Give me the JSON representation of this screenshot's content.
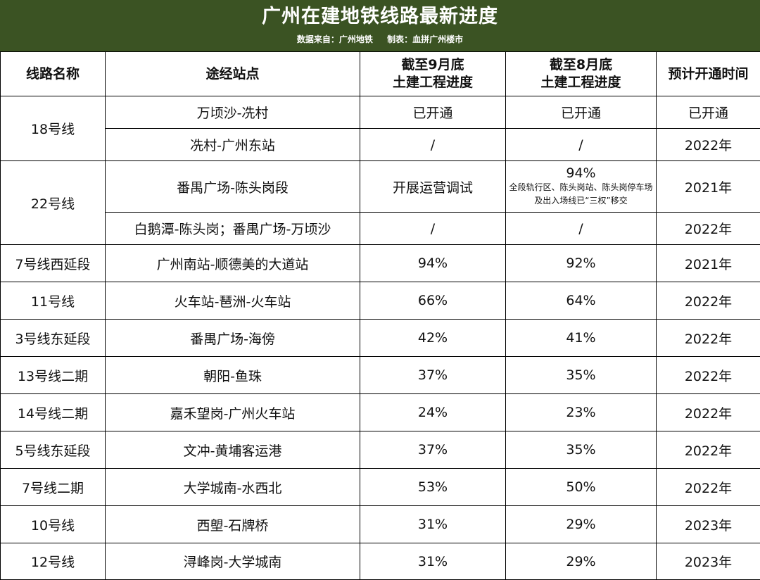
{
  "title": "广州在建地铁线路最新进度",
  "source": "数据来自：广州地铁",
  "maker": "制表：血拼广州楼市",
  "columns": {
    "line": "线路名称",
    "stations": "途经站点",
    "sep_line1": "截至9月底",
    "sep_line2": "土建工程进度",
    "aug_line1": "截至8月底",
    "aug_line2": "土建工程进度",
    "open": "预计开通时间"
  },
  "line18": {
    "name": "18号线",
    "seg1": {
      "stations": "万顷沙-冼村",
      "sep": "已开通",
      "aug": "已开通",
      "open": "已开通"
    },
    "seg2": {
      "stations": "冼村-广州东站",
      "sep": "/",
      "aug": "/",
      "open": "2022年"
    }
  },
  "line22": {
    "name": "22号线",
    "seg1": {
      "stations": "番禺广场-陈头岗段",
      "sep": "开展运营调试",
      "aug": "94%",
      "aug_note": "全段轨行区、陈头岗站、陈头岗停车场及出入场线已“三权”移交",
      "open": "2021年"
    },
    "seg2": {
      "stations": "白鹅潭-陈头岗；番禺广场-万顷沙",
      "sep": "/",
      "aug": "/",
      "open": "2022年"
    }
  },
  "rows": [
    {
      "name": "7号线西延段",
      "stations": "广州南站-顺德美的大道站",
      "sep": "94%",
      "aug": "92%",
      "open": "2021年"
    },
    {
      "name": "11号线",
      "stations": "火车站-琶洲-火车站",
      "sep": "66%",
      "aug": "64%",
      "open": "2022年"
    },
    {
      "name": "3号线东延段",
      "stations": "番禺广场-海傍",
      "sep": "42%",
      "aug": "41%",
      "open": "2022年"
    },
    {
      "name": "13号线二期",
      "stations": "朝阳-鱼珠",
      "sep": "37%",
      "aug": "35%",
      "open": "2022年"
    },
    {
      "name": "14号线二期",
      "stations": "嘉禾望岗-广州火车站",
      "sep": "24%",
      "aug": "23%",
      "open": "2022年"
    },
    {
      "name": "5号线东延段",
      "stations": "文冲-黄埔客运港",
      "sep": "37%",
      "aug": "35%",
      "open": "2022年"
    },
    {
      "name": "7号线二期",
      "stations": "大学城南-水西北",
      "sep": "53%",
      "aug": "50%",
      "open": "2022年"
    },
    {
      "name": "10号线",
      "stations": "西塱-石牌桥",
      "sep": "31%",
      "aug": "29%",
      "open": "2023年"
    },
    {
      "name": "12号线",
      "stations": "浔峰岗-大学城南",
      "sep": "31%",
      "aug": "29%",
      "open": "2023年"
    }
  ]
}
